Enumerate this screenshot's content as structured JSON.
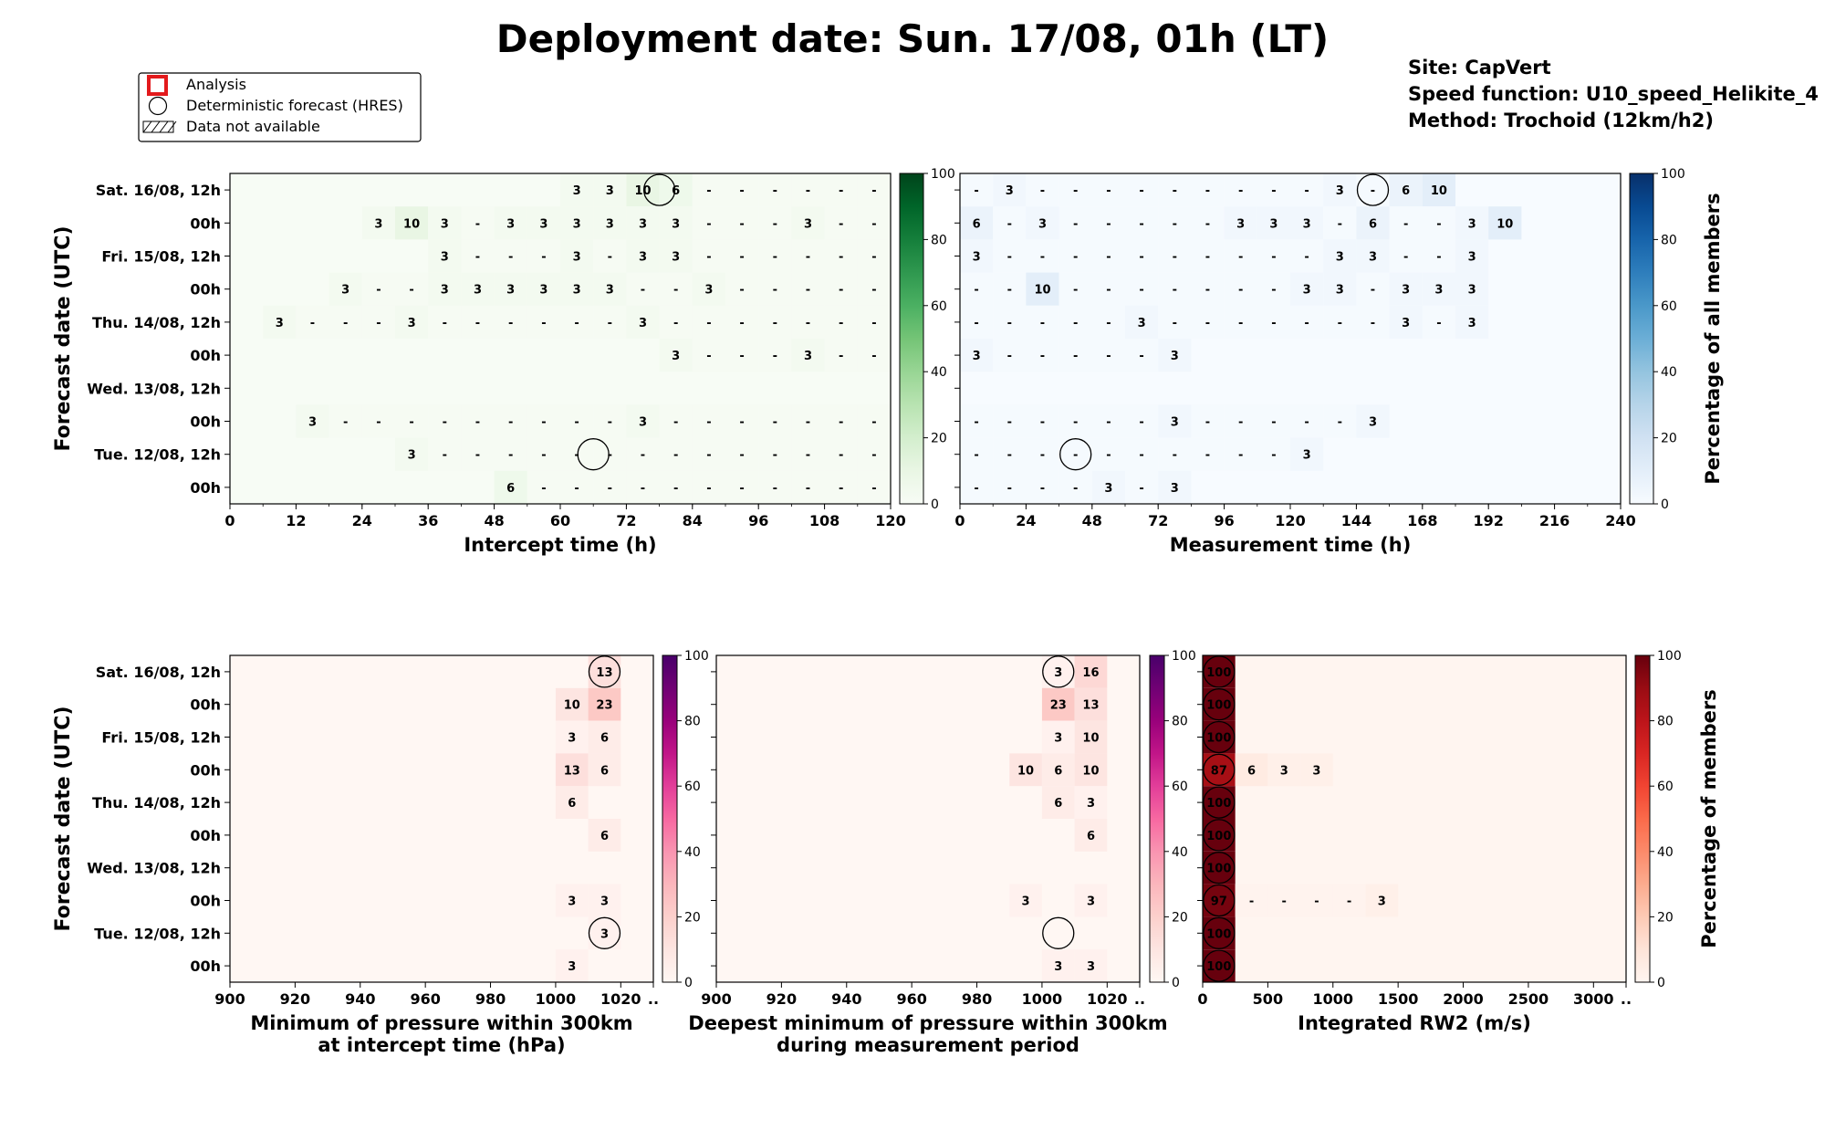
{
  "title": "Deployment date: Sun. 17/08, 01h (LT)",
  "site_info": [
    "Site: CapVert",
    "Speed function: U10_speed_Helikite_4",
    "Method: Trochoid (12km/h2)"
  ],
  "legend": {
    "analysis": "Analysis",
    "hres": "Deterministic forecast (HRES)",
    "na": "Data not available"
  },
  "colorbar_ticks": [
    "0",
    "20",
    "40",
    "60",
    "80",
    "100"
  ],
  "colorbar_labels": {
    "all_members": "Percentage of all members",
    "members": "Percentage of members"
  },
  "colors": {
    "greens_high": "#00441b",
    "blues_high": "#08306b",
    "rdpu_high": "#49006a",
    "reds_high": "#67000d",
    "analysis_marker": "#e31a1c"
  },
  "chart_data": [
    {
      "type": "heatmap",
      "id": "intercept",
      "colormap": "Greens",
      "ylabel": "Forecast date (UTC)",
      "xlabel": "Intercept time (h)",
      "rows": [
        "Sat. 16/08, 12h",
        "00h",
        "Fri. 15/08, 12h",
        "00h",
        "Thu. 14/08, 12h",
        "00h",
        "Wed. 13/08, 12h",
        "00h",
        "Tue. 12/08, 12h",
        "00h"
      ],
      "xlim": [
        0,
        120
      ],
      "xticks": [
        0,
        12,
        24,
        36,
        48,
        60,
        72,
        84,
        96,
        108,
        120
      ],
      "bin_width": 6,
      "rows_data": [
        {
          "start": 60,
          "cells": [
            "3",
            "3",
            "10",
            "6",
            "-",
            "-",
            "-",
            "-",
            "-",
            "-"
          ],
          "hres": 78
        },
        {
          "start": 24,
          "cells": [
            "3",
            "10",
            "3",
            "-",
            "3",
            "3",
            "3",
            "3",
            "3",
            "3",
            "-",
            "-",
            "-",
            "3",
            "-",
            "-"
          ]
        },
        {
          "start": 36,
          "cells": [
            "3",
            "-",
            "-",
            "-",
            "3",
            "-",
            "3",
            "3",
            "-",
            "-",
            "-",
            "-",
            "-",
            "-"
          ]
        },
        {
          "start": 18,
          "cells": [
            "3",
            "-",
            "-",
            "3",
            "3",
            "3",
            "3",
            "3",
            "3",
            "-",
            "-",
            "3",
            "-",
            "-",
            "-",
            "-",
            "-"
          ]
        },
        {
          "start": 6,
          "cells": [
            "3",
            "-",
            "-",
            "-",
            "3",
            "-",
            "-",
            "-",
            "-",
            "-",
            "-",
            "3",
            "-",
            "-",
            "-",
            "-",
            "-",
            "-",
            "-"
          ]
        },
        {
          "start": 78,
          "cells": [
            "3",
            "-",
            "-",
            "-",
            "3",
            "-",
            "-"
          ]
        },
        {
          "start": 0,
          "cells": []
        },
        {
          "start": 12,
          "cells": [
            "3",
            "-",
            "-",
            "-",
            "-",
            "-",
            "-",
            "-",
            "-",
            "-",
            "3",
            "-",
            "-",
            "-",
            "-",
            "-",
            "-",
            "-"
          ]
        },
        {
          "start": 30,
          "cells": [
            "3",
            "-",
            "-",
            "-",
            "-",
            "-",
            "-",
            "-",
            "-",
            "-",
            "-",
            "-",
            "-",
            "-",
            "-"
          ],
          "hres": 66
        },
        {
          "start": 48,
          "cells": [
            "6",
            "-",
            "-",
            "-",
            "-",
            "-",
            "-",
            "-",
            "-",
            "-",
            "-",
            "-"
          ]
        }
      ]
    },
    {
      "type": "heatmap",
      "id": "measurement",
      "colormap": "Blues",
      "xlabel": "Measurement time (h)",
      "colorbar_label": "Percentage of all members",
      "xlim": [
        0,
        240
      ],
      "xticks": [
        0,
        24,
        48,
        72,
        96,
        120,
        144,
        168,
        192,
        216,
        240
      ],
      "bin_width": 12,
      "rows_data": [
        {
          "start": 0,
          "cells": [
            "-",
            "3",
            "-",
            "-",
            "-",
            "-",
            "-",
            "-",
            "-",
            "-",
            "-",
            "3",
            "-",
            "6",
            "10"
          ],
          "hres": 150
        },
        {
          "start": 0,
          "cells": [
            "6",
            "-",
            "3",
            "-",
            "-",
            "-",
            "-",
            "-",
            "3",
            "3",
            "3",
            "-",
            "6",
            "-",
            "-",
            "3",
            "10"
          ]
        },
        {
          "start": 0,
          "cells": [
            "3",
            "-",
            "-",
            "-",
            "-",
            "-",
            "-",
            "-",
            "-",
            "-",
            "-",
            "3",
            "3",
            "-",
            "-",
            "3"
          ]
        },
        {
          "start": 0,
          "cells": [
            "-",
            "-",
            "10",
            "-",
            "-",
            "-",
            "-",
            "-",
            "-",
            "-",
            "3",
            "3",
            "-",
            "3",
            "3",
            "3"
          ]
        },
        {
          "start": 0,
          "cells": [
            "-",
            "-",
            "-",
            "-",
            "-",
            "3",
            "-",
            "-",
            "-",
            "-",
            "-",
            "-",
            "-",
            "3",
            "-",
            "3"
          ]
        },
        {
          "start": 0,
          "cells": [
            "3",
            "-",
            "-",
            "-",
            "-",
            "-",
            "3"
          ]
        },
        {
          "start": 0,
          "cells": []
        },
        {
          "start": 0,
          "cells": [
            "-",
            "-",
            "-",
            "-",
            "-",
            "-",
            "3",
            "-",
            "-",
            "-",
            "-",
            "-",
            "3"
          ]
        },
        {
          "start": 0,
          "cells": [
            "-",
            "-",
            "-",
            "-",
            "-",
            "-",
            "-",
            "-",
            "-",
            "-",
            "3"
          ],
          "hres": 42
        },
        {
          "start": 0,
          "cells": [
            "-",
            "-",
            "-",
            "-",
            "3",
            "-",
            "3"
          ]
        }
      ]
    },
    {
      "type": "heatmap",
      "id": "min-pressure",
      "colormap": "RdPu",
      "ylabel": "Forecast date (UTC)",
      "xlabel": "Minimum of pressure within 300km\nat intercept time (hPa)",
      "xlim": [
        900,
        1030
      ],
      "xticks": [
        "900",
        "920",
        "940",
        "960",
        "980",
        "1000",
        "1020",
        ".."
      ],
      "bin_width": 10,
      "rows_data": [
        {
          "start": 1010,
          "cells": [
            "13"
          ],
          "hres": 1015
        },
        {
          "start": 1000,
          "cells": [
            "10",
            "23"
          ]
        },
        {
          "start": 1000,
          "cells": [
            "3",
            "6"
          ]
        },
        {
          "start": 1000,
          "cells": [
            "13",
            "6"
          ]
        },
        {
          "start": 1000,
          "cells": [
            "6"
          ]
        },
        {
          "start": 1010,
          "cells": [
            "6"
          ]
        },
        {
          "start": 1000,
          "cells": []
        },
        {
          "start": 1000,
          "cells": [
            "3",
            "3"
          ]
        },
        {
          "start": 1010,
          "cells": [
            "3"
          ],
          "hres": 1015
        },
        {
          "start": 1000,
          "cells": [
            "3"
          ]
        }
      ]
    },
    {
      "type": "heatmap",
      "id": "deepest-pressure",
      "colormap": "RdPu",
      "xlabel": "Deepest minimum of pressure within 300km\nduring measurement period",
      "xlim": [
        900,
        1030
      ],
      "xticks": [
        "900",
        "920",
        "940",
        "960",
        "980",
        "1000",
        "1020",
        ".."
      ],
      "bin_width": 10,
      "rows_data": [
        {
          "start": 1000,
          "cells": [
            "3",
            "16"
          ],
          "hres": 1005
        },
        {
          "start": 1000,
          "cells": [
            "23",
            "13"
          ]
        },
        {
          "start": 1000,
          "cells": [
            "3",
            "10"
          ]
        },
        {
          "start": 990,
          "cells": [
            "10",
            "6",
            "10"
          ]
        },
        {
          "start": 1000,
          "cells": [
            "6",
            "3"
          ]
        },
        {
          "start": 1010,
          "cells": [
            "6"
          ]
        },
        {
          "start": 1000,
          "cells": []
        },
        {
          "start": 990,
          "cells": [
            "3",
            "",
            "3"
          ]
        },
        {
          "start": 1000,
          "cells": [
            ""
          ],
          "hres": 1005
        },
        {
          "start": 1000,
          "cells": [
            "3",
            "3"
          ]
        }
      ]
    },
    {
      "type": "heatmap",
      "id": "integrated-rw2",
      "colormap": "Reds",
      "xlabel": "Integrated RW2 (m/s)",
      "colorbar_label": "Percentage of members",
      "xlim": [
        0,
        3250
      ],
      "xticks": [
        "0",
        "500",
        "1000",
        "1500",
        "2000",
        "2500",
        "3000",
        ".."
      ],
      "bin_width": 250,
      "rows_data": [
        {
          "start": 0,
          "cells": [
            "100"
          ],
          "hres": 125
        },
        {
          "start": 0,
          "cells": [
            "100"
          ],
          "hres": 125
        },
        {
          "start": 0,
          "cells": [
            "100"
          ],
          "hres": 125
        },
        {
          "start": 0,
          "cells": [
            "87",
            "6",
            "3",
            "3"
          ],
          "hres": 125
        },
        {
          "start": 0,
          "cells": [
            "100"
          ],
          "hres": 125
        },
        {
          "start": 0,
          "cells": [
            "100"
          ],
          "hres": 125
        },
        {
          "start": 0,
          "cells": [
            "100"
          ],
          "hres": 125
        },
        {
          "start": 0,
          "cells": [
            "97",
            "-",
            "-",
            "-",
            "-",
            "3"
          ],
          "hres": 125
        },
        {
          "start": 0,
          "cells": [
            "100"
          ],
          "hres": 125
        },
        {
          "start": 0,
          "cells": [
            "100"
          ],
          "hres": 125
        }
      ]
    }
  ]
}
